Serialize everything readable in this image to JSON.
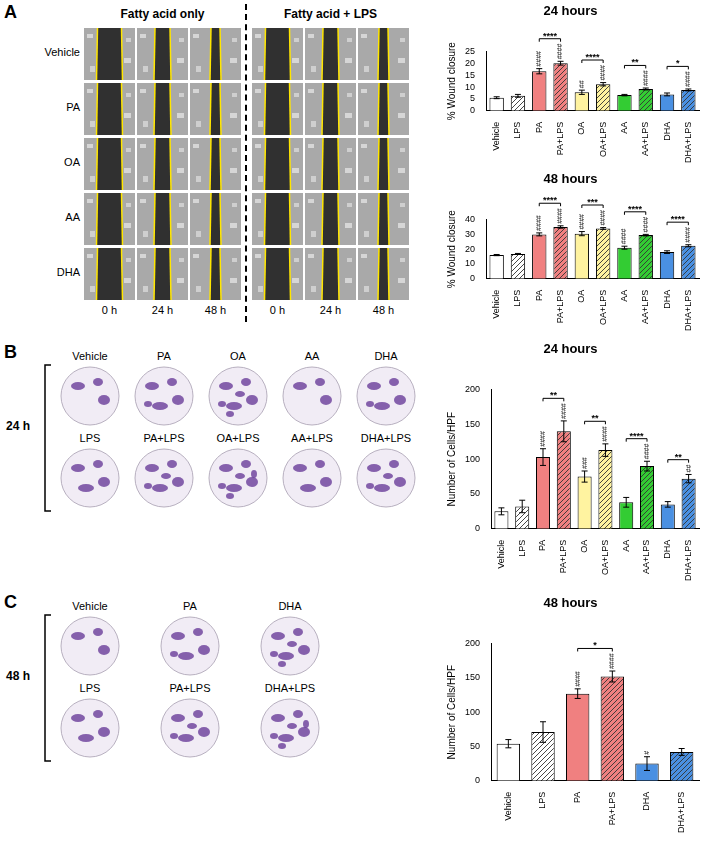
{
  "wound_healing": {
    "letter": "A",
    "headers": [
      "Fatty acid only",
      "Fatty acid + LPS"
    ],
    "rows": [
      "Vehicle",
      "PA",
      "OA",
      "AA",
      "DHA"
    ],
    "times": [
      "0 h",
      "24 h",
      "48 h"
    ]
  },
  "transwell_24h": {
    "letter": "B",
    "time": "24 h",
    "top_row": [
      "Vehicle",
      "PA",
      "OA",
      "AA",
      "DHA"
    ],
    "bottom_row": [
      "LPS",
      "PA+LPS",
      "OA+LPS",
      "AA+LPS",
      "DHA+LPS"
    ]
  },
  "transwell_48h": {
    "letter": "C",
    "time": "48 h",
    "top_row": [
      "Vehicle",
      "PA",
      "DHA"
    ],
    "bottom_row": [
      "LPS",
      "PA+LPS",
      "DHA+LPS"
    ]
  },
  "chart_data": [
    {
      "type": "bar",
      "title": "24 hours",
      "y_label": "% Wound closure",
      "categories": [
        "Vehicle",
        "LPS",
        "PA",
        "PA+LPS",
        "OA",
        "OA+LPS",
        "AA",
        "AA+LPS",
        "DHA",
        "DHA+LPS"
      ],
      "values": [
        5.5,
        6.3,
        16.7,
        20.1,
        7.8,
        11.2,
        6.6,
        9.2,
        6.9,
        8.8
      ],
      "errors": [
        0.4,
        0.6,
        1.1,
        0.8,
        0.9,
        0.7,
        0.3,
        0.4,
        0.6,
        0.4
      ],
      "colors": [
        "#ffffff",
        "#ffffff",
        "#f08080",
        "#f08080",
        "#fff3a0",
        "#fff3a0",
        "#33cc33",
        "#33cc33",
        "#4a90e2",
        "#4a90e2"
      ],
      "value_marks": [
        null,
        null,
        "####",
        "####",
        "##",
        "####",
        null,
        "####",
        null,
        "####"
      ],
      "significance": [
        {
          "pair": [
            "PA",
            "PA+LPS"
          ],
          "label": "****"
        },
        {
          "pair": [
            "OA",
            "OA+LPS"
          ],
          "label": "****"
        },
        {
          "pair": [
            "AA",
            "AA+LPS"
          ],
          "label": "**"
        },
        {
          "pair": [
            "DHA",
            "DHA+LPS"
          ],
          "label": "*"
        }
      ],
      "ylim": [
        0,
        25
      ],
      "yticks": [
        0,
        5,
        10,
        15,
        20,
        25
      ],
      "grid": false
    },
    {
      "type": "bar",
      "title": "48 hours",
      "y_label": "% Wound closure",
      "categories": [
        "Vehicle",
        "LPS",
        "PA",
        "PA+LPS",
        "OA",
        "OA+LPS",
        "AA",
        "AA+LPS",
        "DHA",
        "DHA+LPS"
      ],
      "values": [
        16,
        16.8,
        30,
        35,
        30.5,
        34,
        21,
        29.5,
        18,
        22.3
      ],
      "errors": [
        0.4,
        0.3,
        1.0,
        0.8,
        1.4,
        0.6,
        1.0,
        0.5,
        0.9,
        0.7
      ],
      "colors": [
        "#ffffff",
        "#ffffff",
        "#f08080",
        "#f08080",
        "#fff3a0",
        "#fff3a0",
        "#33cc33",
        "#33cc33",
        "#4a90e2",
        "#4a90e2"
      ],
      "value_marks": [
        null,
        null,
        "####",
        "####",
        "####",
        "####",
        "####",
        "####",
        null,
        "####"
      ],
      "significance": [
        {
          "pair": [
            "PA",
            "PA+LPS"
          ],
          "label": "****"
        },
        {
          "pair": [
            "OA",
            "OA+LPS"
          ],
          "label": "***"
        },
        {
          "pair": [
            "AA",
            "AA+LPS"
          ],
          "label": "****"
        },
        {
          "pair": [
            "DHA",
            "DHA+LPS"
          ],
          "label": "****"
        }
      ],
      "ylim": [
        0,
        40
      ],
      "yticks": [
        0,
        10,
        20,
        30,
        40
      ],
      "grid": false
    },
    {
      "type": "bar",
      "title": "24 hours",
      "y_label": "Number of Cells/HPF",
      "categories": [
        "Vehicle",
        "LPS",
        "PA",
        "PA+LPS",
        "OA",
        "OA+LPS",
        "AA",
        "AA+LPS",
        "DHA",
        "DHA+LPS"
      ],
      "values": [
        25,
        32,
        103,
        140,
        75,
        113,
        38,
        90,
        35,
        72
      ],
      "errors": [
        5,
        9,
        12,
        15,
        8,
        9,
        7,
        7,
        4,
        6
      ],
      "colors": [
        "#ffffff",
        "#ffffff",
        "#f08080",
        "#f08080",
        "#fff3a0",
        "#fff3a0",
        "#33cc33",
        "#33cc33",
        "#4a90e2",
        "#4a90e2"
      ],
      "value_marks": [
        null,
        null,
        "####",
        "####",
        "###",
        "####",
        null,
        "####",
        null,
        "##"
      ],
      "significance": [
        {
          "pair": [
            "PA",
            "PA+LPS"
          ],
          "label": "**"
        },
        {
          "pair": [
            "OA",
            "OA+LPS"
          ],
          "label": "**"
        },
        {
          "pair": [
            "AA",
            "AA+LPS"
          ],
          "label": "****"
        },
        {
          "pair": [
            "DHA",
            "DHA+LPS"
          ],
          "label": "**"
        }
      ],
      "ylim": [
        0,
        200
      ],
      "yticks": [
        0,
        50,
        100,
        150,
        200
      ],
      "grid": false
    },
    {
      "type": "bar",
      "title": "48 hours",
      "y_label": "Number of Cells/HPF",
      "categories": [
        "Vehicle",
        "LPS",
        "PA",
        "PA+LPS",
        "DHA",
        "DHA+LPS"
      ],
      "values": [
        54,
        71,
        127,
        152,
        25,
        42
      ],
      "errors": [
        6,
        15,
        7,
        8,
        10,
        5
      ],
      "colors": [
        "#ffffff",
        "#ffffff",
        "#f08080",
        "#f08080",
        "#4a90e2",
        "#4a90e2"
      ],
      "value_marks": [
        null,
        null,
        "####",
        "####",
        "#",
        null
      ],
      "significance": [
        {
          "pair": [
            "PA",
            "PA+LPS"
          ],
          "label": "*"
        }
      ],
      "ylim": [
        0,
        200
      ],
      "yticks": [
        0,
        50,
        100,
        150,
        200
      ],
      "grid": false
    }
  ]
}
